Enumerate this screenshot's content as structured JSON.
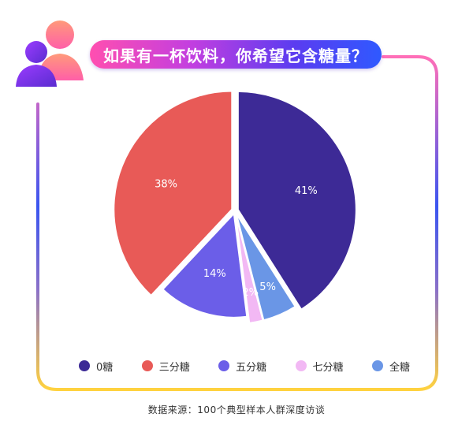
{
  "title": "如果有一杯饮料，你希望它含糖量？",
  "source": "数据来源：100个典型样本人群深度访谈",
  "colors": {
    "frame_top": "#ff6fb8",
    "frame_mid": "#3a55f0",
    "frame_bottom": "#ffd23f",
    "avatar_front": "#7b2cff",
    "avatar_back": "#ff8fb0"
  },
  "icons": {
    "avatar": "people-icon"
  },
  "chart_data": {
    "type": "pie",
    "title": "",
    "start": "top",
    "direction": "clockwise",
    "slices": [
      {
        "label": "0糖",
        "value": 41,
        "display": "41%",
        "color": "#3d2a96"
      },
      {
        "label": "全糖",
        "value": 5,
        "display": "5%",
        "color": "#6a96e6"
      },
      {
        "label": "七分糖",
        "value": 2,
        "display": "2%",
        "color": "#f2b8f4"
      },
      {
        "label": "五分糖",
        "value": 14,
        "display": "14%",
        "color": "#6b5ee8"
      },
      {
        "label": "三分糖",
        "value": 38,
        "display": "38%",
        "color": "#e85a57"
      }
    ],
    "legend": {
      "position": "bottom",
      "order": [
        "0糖",
        "三分糖",
        "五分糖",
        "七分糖",
        "全糖"
      ]
    }
  }
}
